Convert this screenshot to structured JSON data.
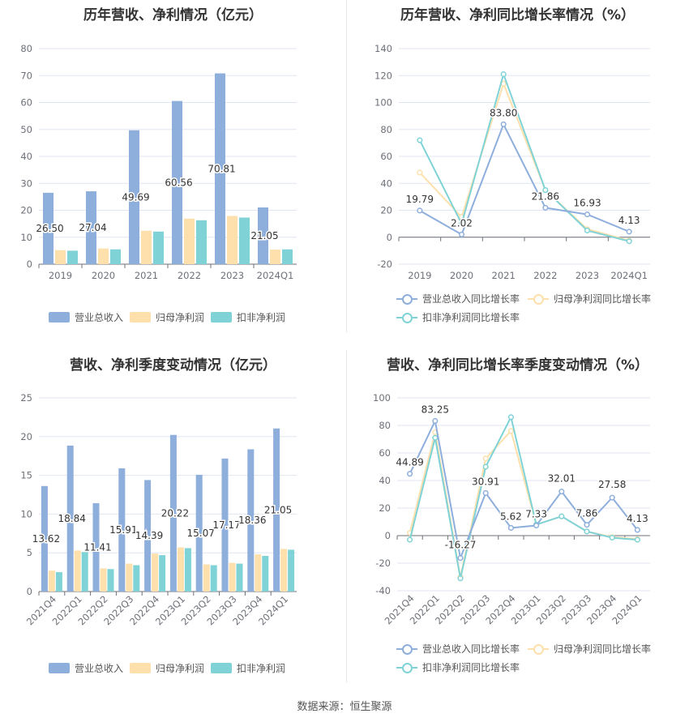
{
  "colors": {
    "revenue": "#8eaedc",
    "net_profit": "#fde0ac",
    "non_recurring": "#7fd3d6",
    "revenue_line": "#8eaedc",
    "net_line": "#fde0ac",
    "non_line": "#7fd3d6",
    "grid": "#e0e6f1",
    "axis_text": "#6e7079"
  },
  "legend_bar": [
    "营业总收入",
    "归母净利润",
    "扣非净利润"
  ],
  "legend_line": [
    "营业总收入同比增长率",
    "归母净利润同比增长率",
    "扣非净利润同比增长率"
  ],
  "source": "数据来源：恒生聚源",
  "chart_data": [
    {
      "type": "bar",
      "title": "历年营收、净利情况（亿元）",
      "categories": [
        "2019",
        "2020",
        "2021",
        "2022",
        "2023",
        "2024Q1"
      ],
      "ylim": [
        0,
        80
      ],
      "yticks": [
        0,
        10,
        20,
        30,
        40,
        50,
        60,
        70,
        80
      ],
      "series": [
        {
          "name": "营业总收入",
          "values": [
            26.5,
            27.04,
            49.69,
            60.56,
            70.81,
            21.05
          ],
          "labels": [
            "26.50",
            "27.04",
            "49.69",
            "60.56",
            "70.81",
            "21.05"
          ]
        },
        {
          "name": "归母净利润",
          "values": [
            5.2,
            5.8,
            12.4,
            16.9,
            17.9,
            5.4
          ]
        },
        {
          "name": "扣非净利润",
          "values": [
            5.0,
            5.5,
            12.1,
            16.3,
            17.3,
            5.5
          ]
        }
      ],
      "legend": "bottom",
      "grid": true
    },
    {
      "type": "line",
      "title": "历年营收、净利同比增长率情况（%）",
      "categories": [
        "2019",
        "2020",
        "2021",
        "2022",
        "2023",
        "2024Q1"
      ],
      "ylim": [
        -20,
        140
      ],
      "yticks": [
        -20,
        0,
        20,
        40,
        60,
        80,
        100,
        120,
        140
      ],
      "series": [
        {
          "name": "营业总收入同比增长率",
          "values": [
            19.79,
            2.02,
            83.8,
            21.86,
            16.93,
            4.13
          ],
          "labels": [
            "19.79",
            "2.02",
            "83.80",
            "21.86",
            "16.93",
            "4.13"
          ]
        },
        {
          "name": "归母净利润同比增长率",
          "values": [
            48,
            15,
            114,
            35,
            6,
            -2.5
          ]
        },
        {
          "name": "扣非净利润同比增长率",
          "values": [
            72,
            10,
            121,
            35,
            5,
            -3
          ]
        }
      ],
      "legend": "bottom",
      "grid": true
    },
    {
      "type": "bar",
      "title": "营收、净利季度变动情况（亿元）",
      "categories": [
        "2021Q4",
        "2022Q1",
        "2022Q2",
        "2022Q3",
        "2022Q4",
        "2023Q1",
        "2023Q2",
        "2023Q3",
        "2023Q4",
        "2024Q1"
      ],
      "ylim": [
        0,
        25
      ],
      "yticks": [
        0,
        5,
        10,
        15,
        20,
        25
      ],
      "series": [
        {
          "name": "营业总收入",
          "values": [
            13.62,
            18.84,
            11.41,
            15.91,
            14.39,
            20.22,
            15.07,
            17.17,
            18.36,
            21.05
          ],
          "labels": [
            "13.62",
            "18.84",
            "11.41",
            "15.91",
            "14.39",
            "20.22",
            "15.07",
            "17.17",
            "18.36",
            "21.05"
          ]
        },
        {
          "name": "归母净利润",
          "values": [
            2.7,
            5.3,
            3.0,
            3.6,
            4.9,
            5.7,
            3.5,
            3.7,
            4.8,
            5.5
          ]
        },
        {
          "name": "扣非净利润",
          "values": [
            2.5,
            5.1,
            2.9,
            3.4,
            4.7,
            5.6,
            3.4,
            3.6,
            4.6,
            5.4
          ]
        }
      ],
      "legend": "bottom",
      "grid": true
    },
    {
      "type": "line",
      "title": "营收、净利同比增长率季度变动情况（%）",
      "categories": [
        "2021Q4",
        "2022Q1",
        "2022Q2",
        "2022Q3",
        "2022Q4",
        "2023Q1",
        "2023Q2",
        "2023Q3",
        "2023Q4",
        "2024Q1"
      ],
      "ylim": [
        -40,
        100
      ],
      "yticks": [
        -40,
        -20,
        0,
        20,
        40,
        60,
        80,
        100
      ],
      "series": [
        {
          "name": "营业总收入同比增长率",
          "values": [
            44.89,
            83.25,
            -16.27,
            30.91,
            5.62,
            7.33,
            32.01,
            7.86,
            27.58,
            4.13
          ],
          "labels": [
            "44.89",
            "83.25",
            "-16.27",
            "30.91",
            "5.62",
            "7.33",
            "32.01",
            "7.86",
            "27.58",
            "4.13"
          ]
        },
        {
          "name": "归母净利润同比增长率",
          "values": [
            2,
            75,
            -30,
            56,
            76,
            8,
            14,
            3,
            -1,
            -2.5
          ]
        },
        {
          "name": "扣非净利润同比增长率",
          "values": [
            -3,
            71,
            -31,
            50,
            86,
            8,
            14,
            3,
            -1.5,
            -3
          ]
        }
      ],
      "legend": "bottom",
      "grid": true
    }
  ]
}
